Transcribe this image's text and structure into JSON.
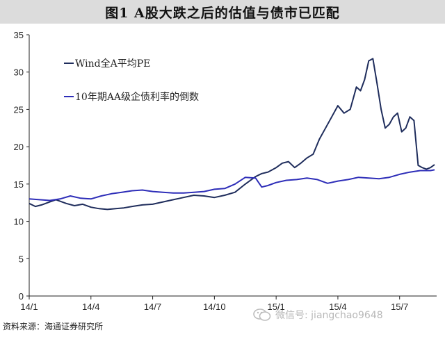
{
  "title": "图1   A股大跌之后的估值与债市已匹配",
  "source_text": "资料来源：海通证券研究所",
  "watermark": {
    "text": "微信号: jiangchao9648",
    "icon": "wechat-icon"
  },
  "chart_data": {
    "type": "line",
    "title": "图1   A股大跌之后的估值与债市已匹配",
    "xlabel": "",
    "ylabel": "",
    "x_tick_labels": [
      "14/1",
      "14/4",
      "14/7",
      "14/10",
      "15/1",
      "15/4",
      "15/7"
    ],
    "x_tick_months": [
      0,
      3,
      6,
      9,
      12,
      15,
      18
    ],
    "x_range_months": [
      0,
      19.8
    ],
    "y_ticks": [
      0,
      5,
      10,
      15,
      20,
      25,
      30,
      35
    ],
    "ylim": [
      0,
      35
    ],
    "grid": false,
    "legend_position": "top-left",
    "series": [
      {
        "name": "Wind全A平均PE",
        "color": "#1f2d5c",
        "x": [
          0,
          0.3,
          0.6,
          1.0,
          1.3,
          1.8,
          2.2,
          2.6,
          3.0,
          3.4,
          3.8,
          4.2,
          4.6,
          5.0,
          5.5,
          6.0,
          6.5,
          7.0,
          7.5,
          8.0,
          8.5,
          9.0,
          9.5,
          10.0,
          10.5,
          11.0,
          11.3,
          11.6,
          12.0,
          12.3,
          12.6,
          12.9,
          13.2,
          13.5,
          13.8,
          14.1,
          14.4,
          14.7,
          15.0,
          15.3,
          15.6,
          15.9,
          16.1,
          16.3,
          16.5,
          16.7,
          16.9,
          17.1,
          17.3,
          17.5,
          17.7,
          17.9,
          18.1,
          18.3,
          18.5,
          18.7,
          18.9,
          19.1,
          19.3,
          19.5,
          19.7
        ],
        "values": [
          12.4,
          12.0,
          12.2,
          12.6,
          12.9,
          12.4,
          12.1,
          12.3,
          11.9,
          11.7,
          11.6,
          11.7,
          11.8,
          12.0,
          12.2,
          12.3,
          12.6,
          12.9,
          13.2,
          13.5,
          13.4,
          13.2,
          13.5,
          13.9,
          15.0,
          16.0,
          16.4,
          16.6,
          17.2,
          17.8,
          18.0,
          17.2,
          17.8,
          18.5,
          19.0,
          21.0,
          22.5,
          24.0,
          25.5,
          24.5,
          25.0,
          28.0,
          27.5,
          29.0,
          31.5,
          31.8,
          28.5,
          25.0,
          22.5,
          23.0,
          24.0,
          24.5,
          22.0,
          22.5,
          24.0,
          23.5,
          17.5,
          17.2,
          17.0,
          17.2,
          17.6
        ]
      },
      {
        "name": "10年期AA级企债利率的倒数",
        "color": "#2d2db8",
        "x": [
          0,
          0.5,
          1.0,
          1.5,
          2.0,
          2.5,
          3.0,
          3.5,
          4.0,
          4.5,
          5.0,
          5.5,
          6.0,
          6.5,
          7.0,
          7.5,
          8.0,
          8.5,
          9.0,
          9.5,
          10.0,
          10.5,
          11.0,
          11.3,
          11.6,
          12.0,
          12.5,
          13.0,
          13.5,
          14.0,
          14.5,
          15.0,
          15.5,
          16.0,
          16.5,
          17.0,
          17.5,
          18.0,
          18.5,
          19.0,
          19.5,
          19.7
        ],
        "values": [
          13.0,
          12.9,
          12.8,
          13.0,
          13.4,
          13.1,
          13.0,
          13.4,
          13.7,
          13.9,
          14.1,
          14.2,
          14.0,
          13.9,
          13.8,
          13.8,
          13.9,
          14.0,
          14.3,
          14.4,
          15.0,
          15.9,
          15.8,
          14.6,
          14.8,
          15.2,
          15.5,
          15.6,
          15.8,
          15.6,
          15.1,
          15.4,
          15.6,
          15.9,
          15.8,
          15.7,
          15.9,
          16.3,
          16.6,
          16.8,
          16.8,
          16.9
        ]
      }
    ]
  }
}
